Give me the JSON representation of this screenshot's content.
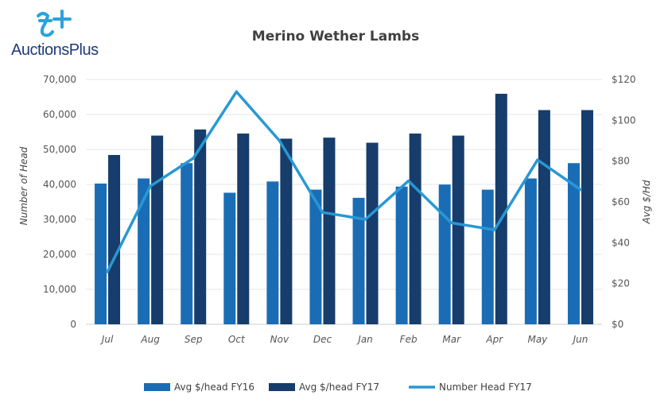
{
  "logo": {
    "text": "AuctionsPlus",
    "color": "#1f3a7a",
    "accent": "#2aa3dc"
  },
  "chart_data": {
    "type": "bar",
    "title": "Merino Wether Lambs",
    "categories": [
      "Jul",
      "Aug",
      "Sep",
      "Oct",
      "Nov",
      "Dec",
      "Jan",
      "Feb",
      "Mar",
      "Apr",
      "May",
      "Jun"
    ],
    "ylabel": "Number of Head",
    "y2label": "Avg $/Hd",
    "ylim": [
      0,
      70000
    ],
    "y2lim": [
      0,
      120
    ],
    "yticks": [
      "0",
      "10,000",
      "20,000",
      "30,000",
      "40,000",
      "50,000",
      "60,000",
      "70,000"
    ],
    "y2ticks": [
      "$0",
      "$20",
      "$40",
      "$60",
      "$80",
      "$100",
      "$120"
    ],
    "grid": true,
    "legend_position": "bottom",
    "series": [
      {
        "name": "Avg $/head FY16",
        "type": "bar",
        "axis": "right",
        "color": "#1a6db5",
        "values": [
          69,
          71.5,
          79,
          64.5,
          70,
          66,
          62,
          67.5,
          68.5,
          66,
          71.5,
          79
        ]
      },
      {
        "name": "Avg $/head FY17",
        "type": "bar",
        "axis": "right",
        "color": "#163d6b",
        "values": [
          83,
          92.5,
          95.5,
          93.5,
          91,
          91.5,
          89,
          93.5,
          92.5,
          113,
          105,
          105
        ]
      },
      {
        "name": "Number Head FY17",
        "type": "line",
        "axis": "left",
        "color": "#2898d4",
        "values": [
          15000,
          39500,
          47500,
          66500,
          52500,
          32000,
          30000,
          41000,
          29000,
          27000,
          47000,
          38500
        ]
      }
    ]
  }
}
